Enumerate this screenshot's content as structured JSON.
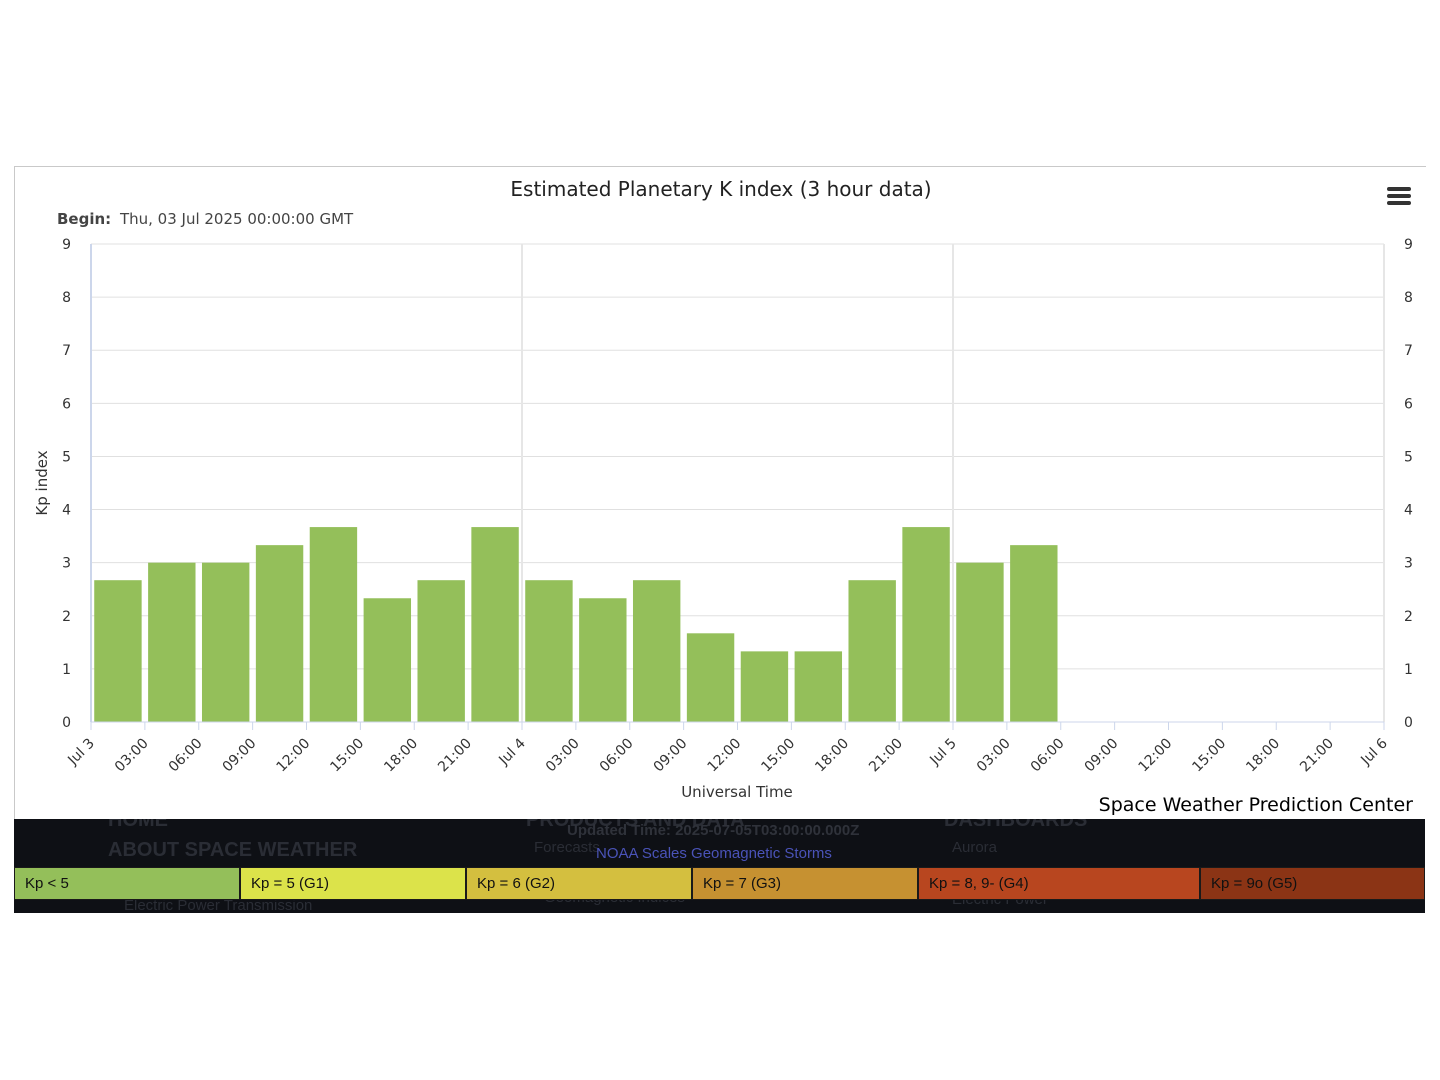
{
  "chart_data": {
    "type": "bar",
    "title": "Estimated Planetary K index (3 hour data)",
    "subtitle_label": "Begin:",
    "subtitle_value": "Thu, 03 Jul 2025 00:00:00 GMT",
    "xlabel": "Universal Time",
    "ylabel": "Kp index",
    "ylim": [
      0,
      9
    ],
    "yticks": [
      0,
      1,
      2,
      3,
      4,
      5,
      6,
      7,
      8,
      9
    ],
    "xlim": [
      "2025-07-03 00:00",
      "2025-07-06 00:00"
    ],
    "x_tick_labels": [
      "Jul 3",
      "03:00",
      "06:00",
      "09:00",
      "12:00",
      "15:00",
      "18:00",
      "21:00",
      "Jul 4",
      "03:00",
      "06:00",
      "09:00",
      "12:00",
      "15:00",
      "18:00",
      "21:00",
      "Jul 5",
      "03:00",
      "06:00",
      "09:00",
      "12:00",
      "15:00",
      "18:00",
      "21:00",
      "Jul 6"
    ],
    "grid": true,
    "bar_color": "#94bf5a",
    "x": [
      "2025-07-03 00:00",
      "2025-07-03 03:00",
      "2025-07-03 06:00",
      "2025-07-03 09:00",
      "2025-07-03 12:00",
      "2025-07-03 15:00",
      "2025-07-03 18:00",
      "2025-07-03 21:00",
      "2025-07-04 00:00",
      "2025-07-04 03:00",
      "2025-07-04 06:00",
      "2025-07-04 09:00",
      "2025-07-04 12:00",
      "2025-07-04 15:00",
      "2025-07-04 18:00",
      "2025-07-04 21:00",
      "2025-07-05 00:00",
      "2025-07-05 03:00"
    ],
    "values": [
      2.67,
      3.0,
      3.0,
      3.33,
      3.67,
      2.33,
      2.67,
      3.67,
      2.67,
      2.33,
      2.67,
      1.67,
      1.33,
      1.33,
      2.67,
      3.67,
      3.0,
      3.33
    ]
  },
  "menu_icon": "hamburger-menu-icon",
  "credit": "Space Weather Prediction Center",
  "footer": {
    "updated_time": "Updated Time: 2025-07-05T03:00:00.000Z",
    "scales_title": "NOAA Scales Geomagnetic Storms",
    "scales": [
      {
        "label": "Kp < 5",
        "color": "#94bf5a"
      },
      {
        "label": "Kp = 5 (G1)",
        "color": "#dce34a"
      },
      {
        "label": "Kp = 6 (G2)",
        "color": "#d4bf3f"
      },
      {
        "label": "Kp = 7 (G3)",
        "color": "#c69131"
      },
      {
        "label": "Kp = 8, 9- (G4)",
        "color": "#b8461f"
      },
      {
        "label": "Kp = 9o (G5)",
        "color": "#8b3415"
      }
    ],
    "ghost_nav": {
      "home": "HOME",
      "about": "ABOUT SPACE WEATHER",
      "electric": "Electric Power Transmission",
      "products": "PRODUCTS AND DATA",
      "forecasts": "Forecasts",
      "geomag": "Geomagnetic Indices",
      "dashboards": "DASHBOARDS",
      "aurora": "Aurora",
      "electric_power": "Electric Power"
    }
  }
}
